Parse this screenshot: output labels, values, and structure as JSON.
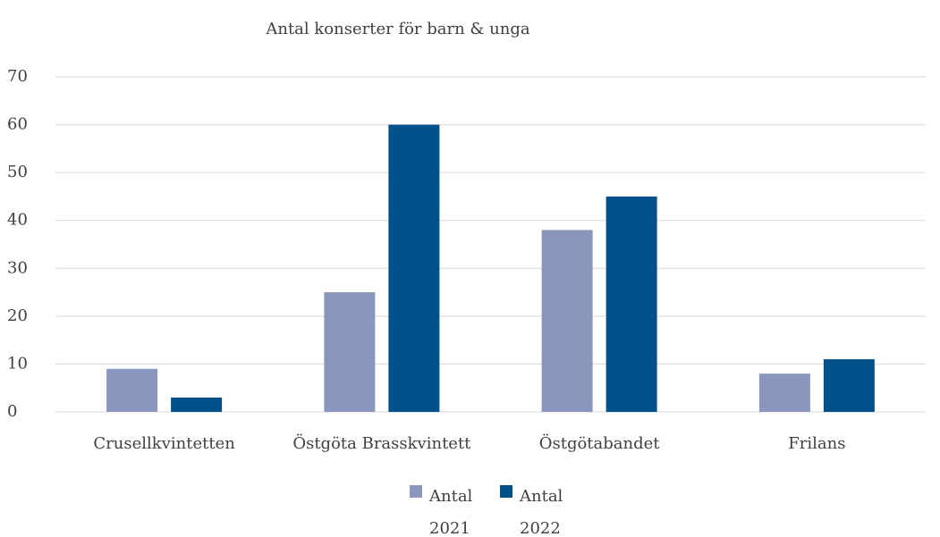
{
  "chart_data": {
    "type": "bar",
    "title": "Antal konserter för barn & unga",
    "categories": [
      "Crusellkvintetten",
      "Östgöta Brasskvintett",
      "Östgötabandet",
      "Frilans"
    ],
    "series": [
      {
        "name": "Antal 2021",
        "color": "#8a96bb",
        "values": [
          9,
          25,
          38,
          8
        ]
      },
      {
        "name": "Antal 2022",
        "color": "#03518a",
        "values": [
          3,
          60,
          45,
          11
        ]
      }
    ],
    "ylim": [
      0,
      70
    ],
    "yticks": [
      0,
      10,
      20,
      30,
      40,
      50,
      60,
      70
    ],
    "grid": true,
    "legend": "bottom"
  }
}
